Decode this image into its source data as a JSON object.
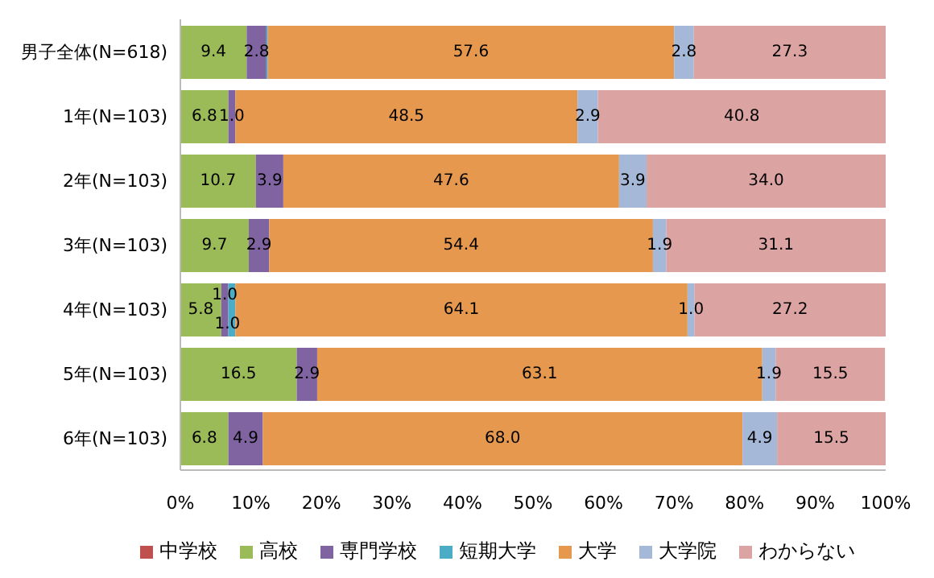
{
  "chart_data": {
    "type": "bar",
    "orientation": "horizontal",
    "stacked": true,
    "legend": "bottom",
    "grid": false,
    "categories": [
      "男子全体(N=618)",
      "1年(N=103)",
      "2年(N=103)",
      "3年(N=103)",
      "4年(N=103)",
      "5年(N=103)",
      "6年(N=103)"
    ],
    "xlim": [
      0,
      100
    ],
    "xticks": [
      {
        "value": 0,
        "label": "0%"
      },
      {
        "value": 10,
        "label": "10%"
      },
      {
        "value": 20,
        "label": "20%"
      },
      {
        "value": 30,
        "label": "30%"
      },
      {
        "value": 40,
        "label": "40%"
      },
      {
        "value": 50,
        "label": "50%"
      },
      {
        "value": 60,
        "label": "60%"
      },
      {
        "value": 70,
        "label": "70%"
      },
      {
        "value": 80,
        "label": "80%"
      },
      {
        "value": 90,
        "label": "90%"
      },
      {
        "value": 100,
        "label": "100%"
      }
    ],
    "series": [
      {
        "name": "中学校",
        "color": "#c0504d",
        "values": [
          null,
          null,
          null,
          null,
          null,
          null,
          null
        ]
      },
      {
        "name": "高校",
        "color": "#9bbb59",
        "values": [
          9.4,
          6.8,
          10.7,
          9.7,
          5.8,
          16.5,
          6.8
        ],
        "value_labels": [
          "9.4",
          "6.8",
          "10.7",
          "9.7",
          "5.8",
          "16.5",
          "6.8"
        ]
      },
      {
        "name": "専門学校",
        "color": "#8064a2",
        "values": [
          2.8,
          1.0,
          3.9,
          2.9,
          1.0,
          2.9,
          4.9
        ],
        "value_labels": [
          "2.8",
          "1.0",
          "3.9",
          "2.9",
          "1.0",
          "2.9",
          "4.9"
        ]
      },
      {
        "name": "短期大学",
        "color": "#4bacc6",
        "values": [
          0.2,
          null,
          null,
          null,
          1.0,
          null,
          null
        ],
        "value_labels": [
          null,
          null,
          null,
          null,
          "1.0",
          null,
          null
        ]
      },
      {
        "name": "大学",
        "color": "#e5984e",
        "values": [
          57.6,
          48.5,
          47.6,
          54.4,
          64.1,
          63.1,
          68.0
        ],
        "value_labels": [
          "57.6",
          "48.5",
          "47.6",
          "54.4",
          "64.1",
          "63.1",
          "68.0"
        ]
      },
      {
        "name": "大学院",
        "color": "#a5b8d8",
        "values": [
          2.8,
          2.9,
          3.9,
          1.9,
          1.0,
          1.9,
          4.9
        ],
        "value_labels": [
          "2.8",
          "2.9",
          "3.9",
          "1.9",
          "1.0",
          "1.9",
          "4.9"
        ]
      },
      {
        "name": "わからない",
        "color": "#dca3a3",
        "values": [
          27.3,
          40.8,
          34.0,
          31.1,
          27.2,
          15.5,
          15.5
        ],
        "value_labels": [
          "27.3",
          "40.8",
          "34.0",
          "31.1",
          "27.2",
          "15.5",
          "15.5"
        ]
      }
    ]
  }
}
